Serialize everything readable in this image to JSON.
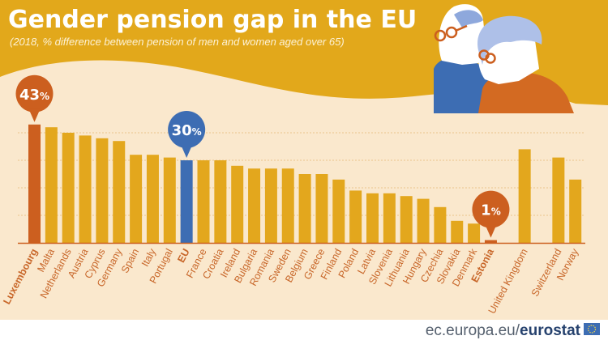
{
  "header": {
    "title": "Gender pension gap in the EU",
    "subtitle": "(2018, % difference between pension of men and women aged over 65)"
  },
  "footer": {
    "source_plain": "ec.europa.eu/",
    "source_bold": "eurostat"
  },
  "colors": {
    "header_bg": "#e2a81b",
    "chart_bg": "#fae8cd",
    "bar_default": "#e3a71d",
    "bar_highlight": "#cc5f1f",
    "bar_eu": "#3d6db3",
    "label_color": "#c8672a",
    "gridline": "#e9c48a"
  },
  "chart_data": {
    "type": "bar",
    "title": "Gender pension gap in the EU",
    "subtitle": "(2018, % difference between pension of men and women aged over 65)",
    "xlabel": "",
    "ylabel": "",
    "ylim": [
      0,
      45
    ],
    "grid": true,
    "gridline_values": [
      10,
      20,
      30,
      40
    ],
    "categories": [
      "Luxembourg",
      "Malta",
      "Netherlands",
      "Austria",
      "Cyprus",
      "Germany",
      "Spain",
      "Italy",
      "Portugal",
      "EU",
      "France",
      "Croatia",
      "Ireland",
      "Bulgaria",
      "Romania",
      "Sweden",
      "Belgium",
      "Greece",
      "Finland",
      "Poland",
      "Latvia",
      "Slovenia",
      "Lithuania",
      "Hungary",
      "Czechia",
      "Slovakia",
      "Denmark",
      "Estonia",
      "",
      "United Kingdom",
      "",
      "Switzerland",
      "Norway"
    ],
    "values": [
      43,
      42,
      40,
      39,
      38,
      37,
      32,
      32,
      31,
      30,
      30,
      30,
      28,
      27,
      27,
      27,
      25,
      25,
      23,
      19,
      18,
      18,
      17,
      16,
      13,
      8,
      7,
      1,
      null,
      34,
      null,
      31,
      23
    ],
    "highlight": {
      "Luxembourg": "max",
      "EU": "eu",
      "Estonia": "min"
    },
    "annotations": [
      {
        "category": "Luxembourg",
        "text": "43",
        "unit": "%"
      },
      {
        "category": "EU",
        "text": "30",
        "unit": "%"
      },
      {
        "category": "Estonia",
        "text": "1",
        "unit": "%"
      }
    ]
  }
}
